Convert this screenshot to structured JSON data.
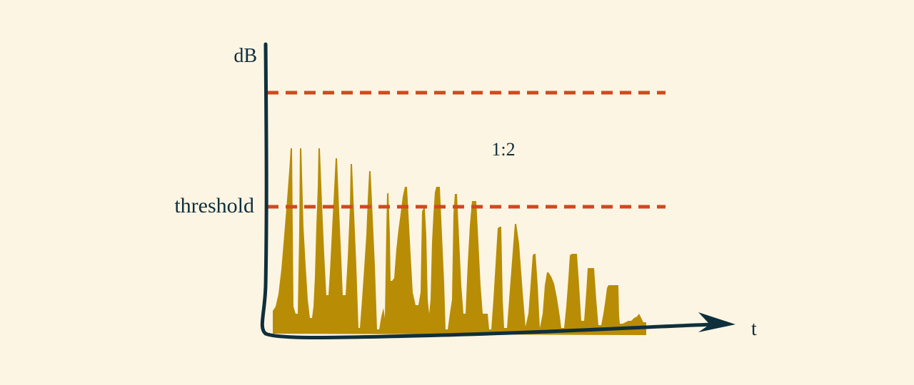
{
  "labels": {
    "y_axis": "dB",
    "x_axis": "t",
    "threshold": "threshold",
    "ratio": "1:2"
  },
  "colors": {
    "background": "#fcf5e3",
    "axis": "#0f2f3c",
    "dashed_lines": "#d0491e",
    "signal": "#b88d05"
  }
}
